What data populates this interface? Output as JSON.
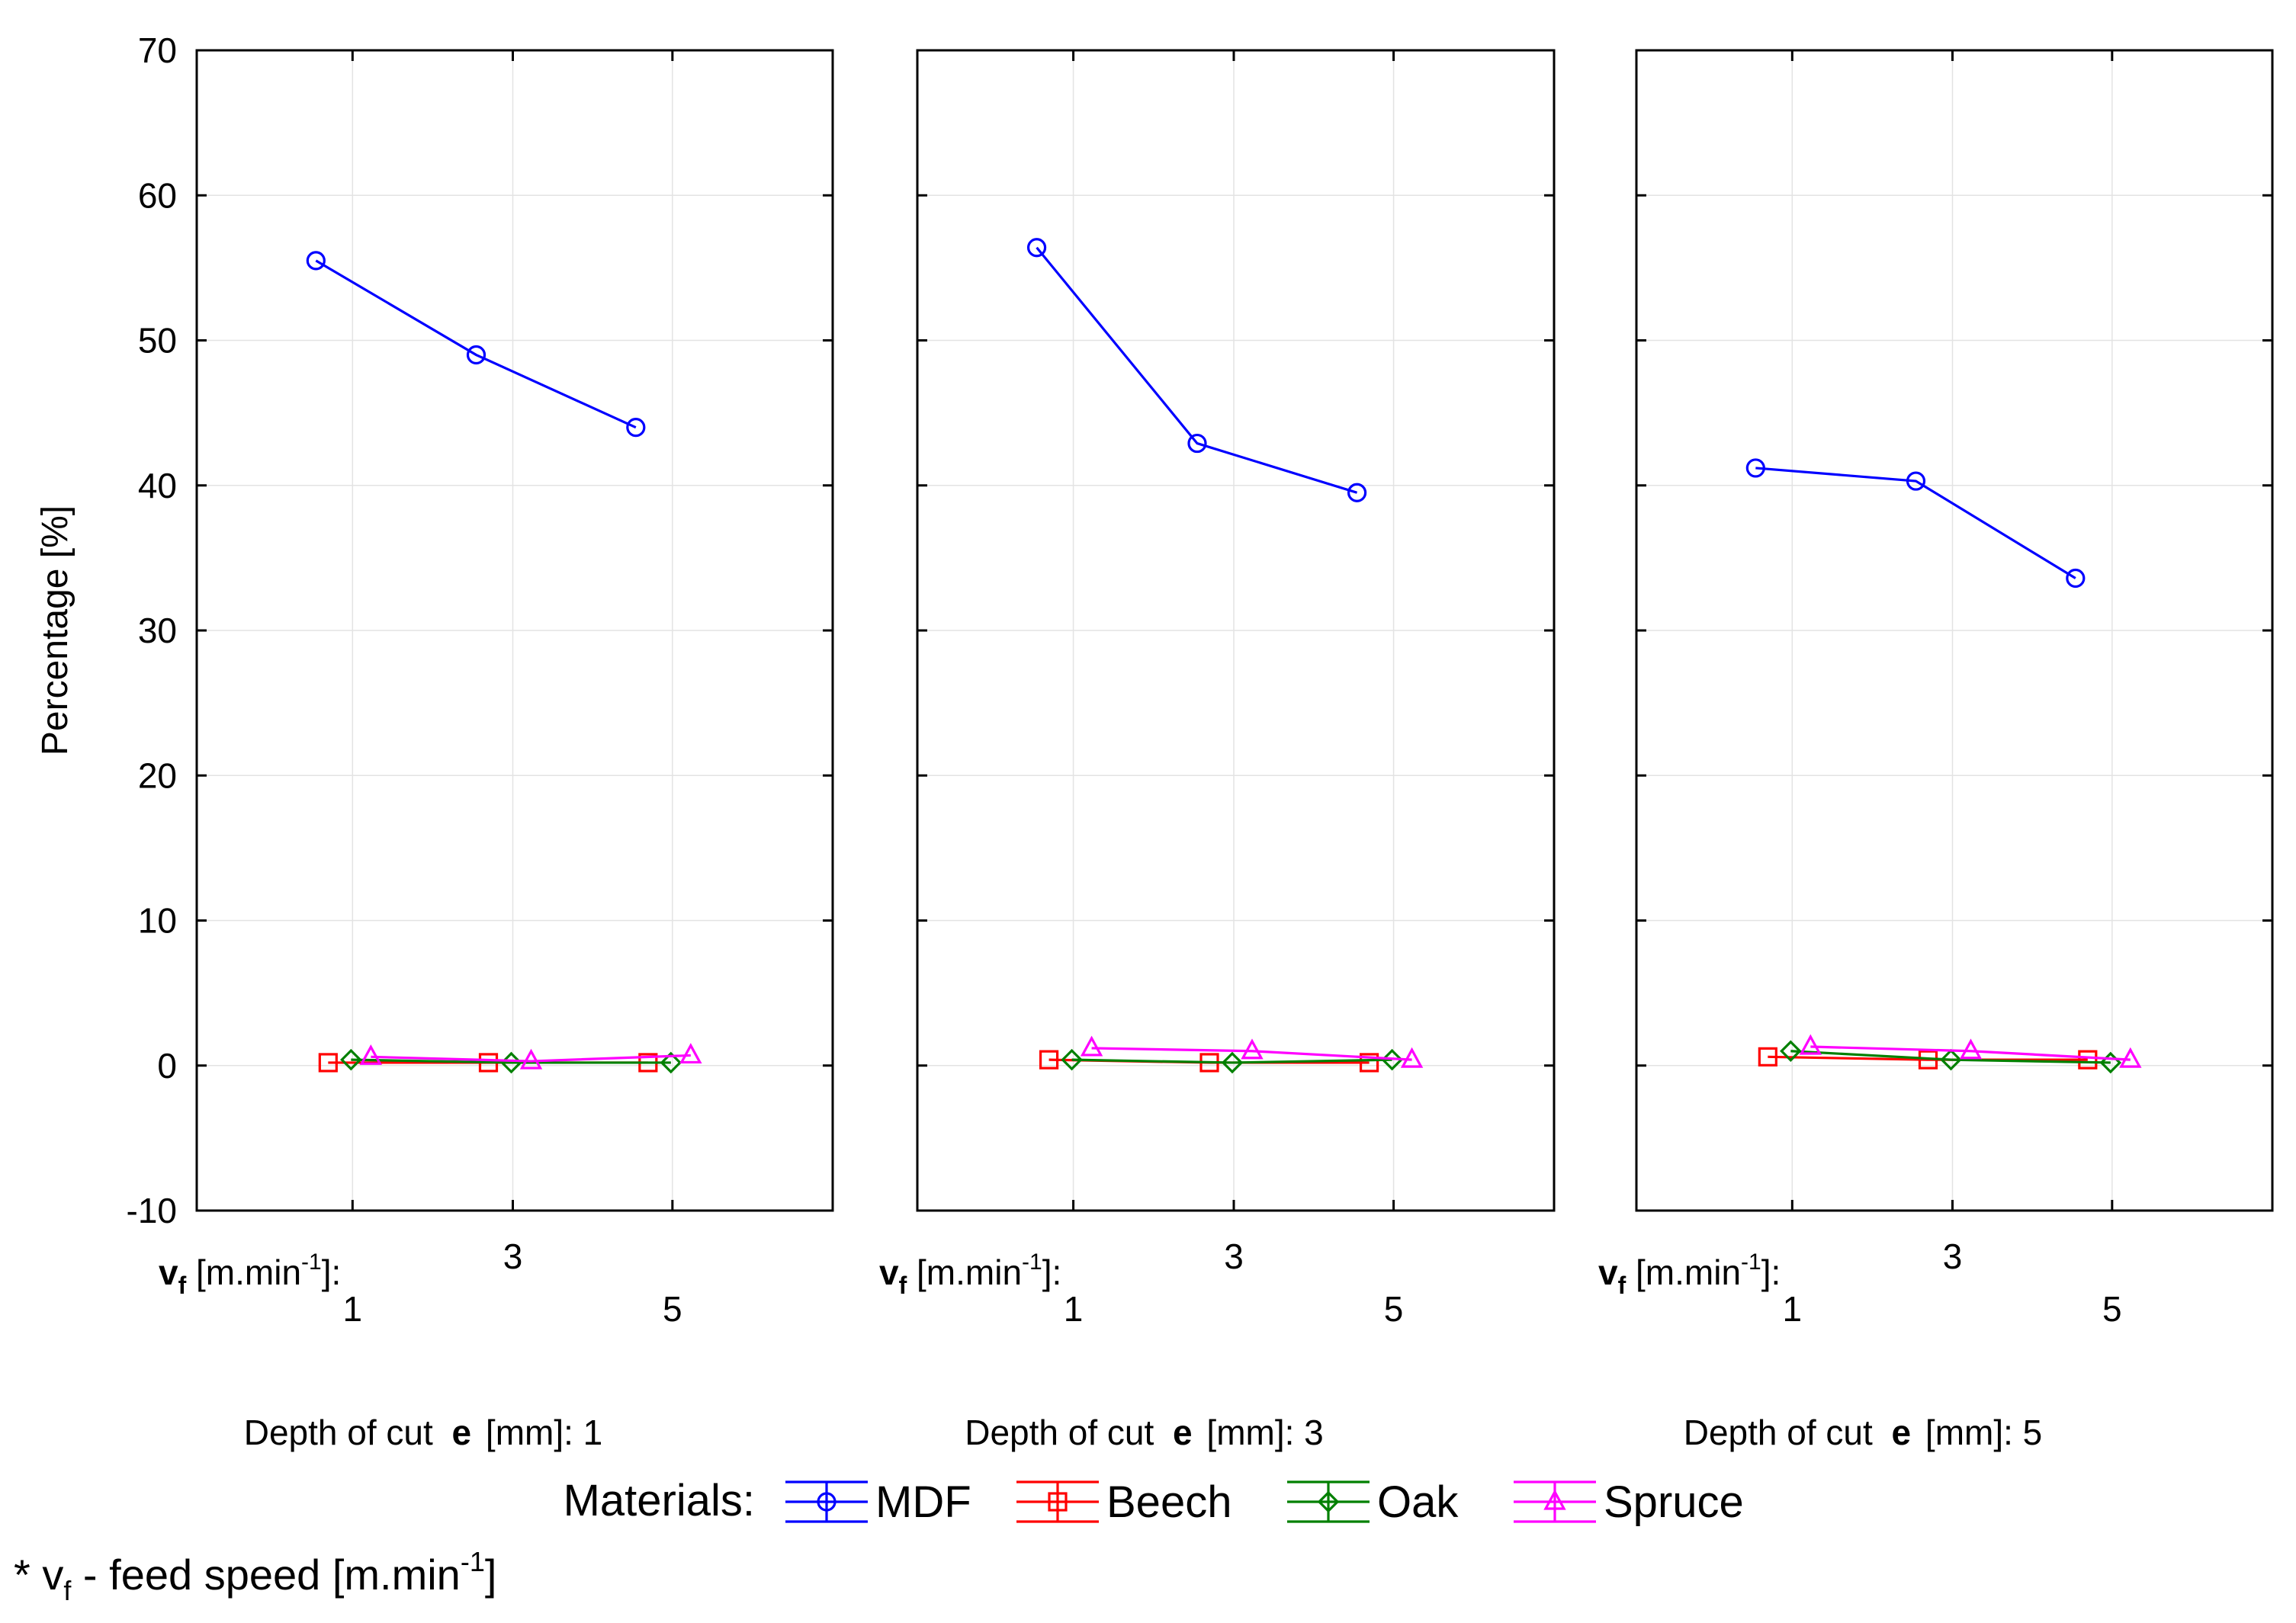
{
  "chart_data": {
    "type": "line",
    "ylabel": "Percentage [%]",
    "ylim": [
      -10,
      70
    ],
    "yticks": [
      -10,
      0,
      10,
      20,
      30,
      40,
      50,
      60,
      70
    ],
    "x_axis": {
      "prefix": "v",
      "prefix_sub": "f",
      "unit": " [m.min",
      "unit_sup": "-1",
      "unit_end": "]:",
      "categories": [
        "1",
        "3",
        "5"
      ]
    },
    "grid": true,
    "legend": {
      "title": "Materials:",
      "position": "bottom",
      "entries": [
        "MDF",
        "Beech",
        "Oak",
        "Spruce"
      ]
    },
    "series_style": [
      {
        "name": "MDF",
        "color": "#0000ff",
        "marker": "circle"
      },
      {
        "name": "Beech",
        "color": "#ff0000",
        "marker": "square"
      },
      {
        "name": "Oak",
        "color": "#008000",
        "marker": "diamond"
      },
      {
        "name": "Spruce",
        "color": "#ff00ff",
        "marker": "triangle"
      }
    ],
    "panels": [
      {
        "label_prefix": "Depth of cut ",
        "label_var": "e",
        "label_unit": " [mm]: 1",
        "series": [
          {
            "name": "MDF",
            "values": [
              55.5,
              49.0,
              44.0
            ]
          },
          {
            "name": "Beech",
            "values": [
              0.2,
              0.2,
              0.2
            ]
          },
          {
            "name": "Oak",
            "values": [
              0.4,
              0.2,
              0.2
            ]
          },
          {
            "name": "Spruce",
            "values": [
              0.6,
              0.3,
              0.7
            ]
          }
        ]
      },
      {
        "label_prefix": "Depth of cut ",
        "label_var": "e",
        "label_unit": " [mm]: 3",
        "series": [
          {
            "name": "MDF",
            "values": [
              56.4,
              42.9,
              39.5
            ]
          },
          {
            "name": "Beech",
            "values": [
              0.4,
              0.2,
              0.2
            ]
          },
          {
            "name": "Oak",
            "values": [
              0.4,
              0.2,
              0.4
            ]
          },
          {
            "name": "Spruce",
            "values": [
              1.2,
              1.0,
              0.4
            ]
          }
        ]
      },
      {
        "label_prefix": "Depth of cut ",
        "label_var": "e",
        "label_unit": " [mm]: 5",
        "series": [
          {
            "name": "MDF",
            "values": [
              41.2,
              40.3,
              33.6
            ]
          },
          {
            "name": "Beech",
            "values": [
              0.6,
              0.4,
              0.4
            ]
          },
          {
            "name": "Oak",
            "values": [
              1.0,
              0.4,
              0.2
            ]
          },
          {
            "name": "Spruce",
            "values": [
              1.3,
              1.0,
              0.4
            ]
          }
        ]
      }
    ],
    "footnote": {
      "prefix": "* v",
      "sub": "f",
      "middle": " - feed speed  [m.min",
      "sup": "-1",
      "end": "]"
    }
  }
}
